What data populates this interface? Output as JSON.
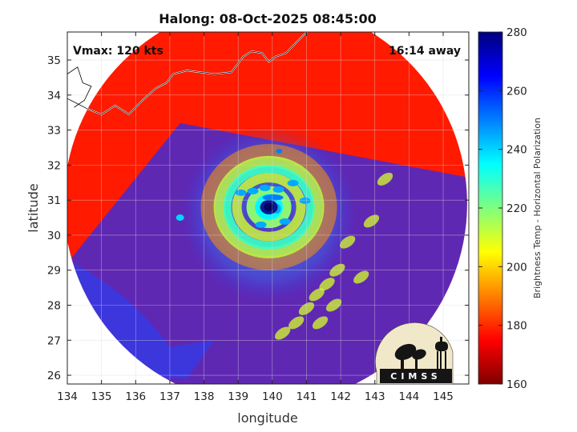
{
  "chart_data": {
    "type": "heatmap",
    "title": "Halong: 08-Oct-2025 08:45:00",
    "xlabel": "longitude",
    "ylabel": "latitude",
    "xlim": [
      134,
      145.75
    ],
    "ylim": [
      25.75,
      35.8
    ],
    "xticks": [
      134,
      135,
      136,
      137,
      138,
      139,
      140,
      141,
      142,
      143,
      144,
      145
    ],
    "yticks": [
      26,
      27,
      28,
      29,
      30,
      31,
      32,
      33,
      34,
      35
    ],
    "grid": true,
    "swath_center": [
      139.8,
      30.9
    ],
    "swath_radius_deg": 5.9,
    "features": {
      "eye": {
        "lon": 139.9,
        "lat": 30.8,
        "brightness_temp_k": 252
      },
      "eyewall_min_temp_k": 195,
      "rainband_min_temp_k": 205,
      "background_temp_k": 262
    },
    "annotations": {
      "vmax": "Vmax: 120 kts",
      "time_offset": "16:14 away"
    },
    "colorbar": {
      "label": "Brightness Temp - Horizontal Polarization",
      "min": 160,
      "max": 280,
      "ticks": [
        160,
        180,
        200,
        220,
        240,
        260,
        280
      ],
      "colormap": "jet"
    },
    "logo": "CIMSS",
    "colors": {
      "coastline": "#ffffff",
      "land_outline": "#000000",
      "grid": "#d9d9d9"
    }
  }
}
